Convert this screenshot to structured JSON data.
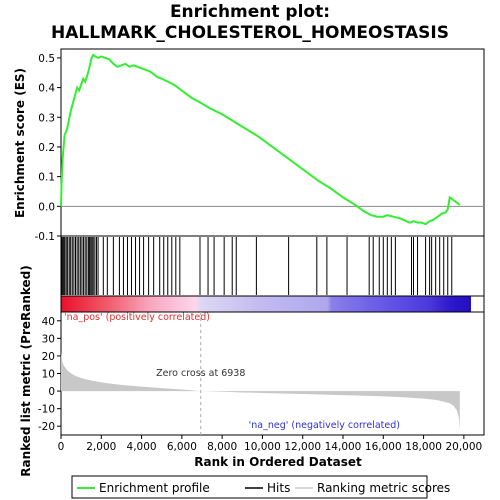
{
  "title_line1": "Enrichment plot:",
  "title_line2": "HALLMARK_CHOLESTEROL_HOMEOSTASIS",
  "colors": {
    "es_line": "#33ee33",
    "hits": "#000000",
    "metric_fill": "#c8c8c8",
    "pos_label": "#e03030",
    "neg_label": "#3030d0",
    "zero_line": "#aaaaaa"
  },
  "chart_data": [
    {
      "type": "line",
      "panel": "enrichment",
      "ylabel": "Enrichment score (ES)",
      "xlim": [
        0,
        21000
      ],
      "ylim": [
        -0.1,
        0.53
      ],
      "x_ticks": [
        0,
        2000,
        4000,
        6000,
        8000,
        10000,
        12000,
        14000,
        16000,
        18000,
        20000
      ],
      "y_ticks": [
        -0.1,
        0.0,
        0.1,
        0.2,
        0.3,
        0.4,
        0.5
      ],
      "y_tick_labels": [
        "-0.1",
        "0.0",
        "0.1",
        "0.2",
        "0.3",
        "0.4",
        "0.5"
      ],
      "series": [
        {
          "name": "Enrichment profile",
          "x": [
            0,
            30,
            80,
            130,
            180,
            240,
            300,
            360,
            420,
            480,
            560,
            640,
            720,
            800,
            900,
            1000,
            1100,
            1200,
            1300,
            1380,
            1450,
            1520,
            1600,
            1700,
            1850,
            2000,
            2200,
            2400,
            2600,
            2800,
            3000,
            3200,
            3400,
            3600,
            3800,
            4000,
            4200,
            4400,
            4600,
            4800,
            5000,
            5300,
            5600,
            5900,
            6200,
            6500,
            6900,
            7400,
            8000,
            8600,
            9200,
            9800,
            10400,
            11000,
            11600,
            12200,
            12800,
            13400,
            14000,
            14600,
            15000,
            15400,
            15700,
            16000,
            16200,
            16500,
            16800,
            17000,
            17300,
            17500,
            17700,
            17900,
            18100,
            18300,
            18500,
            18700,
            18900,
            19100,
            19200,
            19300,
            19500,
            19700,
            19800
          ],
          "y": [
            0.0,
            0.08,
            0.16,
            0.2,
            0.24,
            0.25,
            0.26,
            0.28,
            0.3,
            0.32,
            0.34,
            0.36,
            0.38,
            0.4,
            0.39,
            0.41,
            0.43,
            0.42,
            0.44,
            0.46,
            0.48,
            0.5,
            0.51,
            0.505,
            0.5,
            0.505,
            0.5,
            0.495,
            0.48,
            0.47,
            0.475,
            0.48,
            0.47,
            0.475,
            0.47,
            0.465,
            0.46,
            0.455,
            0.445,
            0.435,
            0.43,
            0.42,
            0.41,
            0.395,
            0.38,
            0.365,
            0.35,
            0.33,
            0.31,
            0.285,
            0.26,
            0.235,
            0.205,
            0.175,
            0.145,
            0.115,
            0.085,
            0.06,
            0.03,
            0.005,
            -0.015,
            -0.03,
            -0.035,
            -0.035,
            -0.03,
            -0.035,
            -0.04,
            -0.045,
            -0.055,
            -0.05,
            -0.055,
            -0.055,
            -0.06,
            -0.05,
            -0.045,
            -0.035,
            -0.025,
            -0.02,
            -0.01,
            0.03,
            0.02,
            0.01,
            0.005
          ]
        }
      ],
      "hits": [
        40,
        90,
        140,
        190,
        260,
        330,
        410,
        480,
        560,
        640,
        720,
        800,
        880,
        960,
        1040,
        1120,
        1200,
        1280,
        1360,
        1420,
        1480,
        1540,
        1600,
        1680,
        1760,
        1840,
        2100,
        2300,
        2600,
        2900,
        3100,
        3300,
        3500,
        3700,
        3900,
        4100,
        4350,
        4600,
        4900,
        5100,
        5300,
        5500,
        5700,
        5900,
        6900,
        7300,
        7600,
        8100,
        8500,
        8700,
        9700,
        11300,
        12700,
        13200,
        14200,
        15300,
        15500,
        15800,
        16000,
        16200,
        16400,
        16600,
        17400,
        17500,
        17700,
        18100,
        18300,
        18400,
        18600,
        18800,
        19000,
        19200,
        19400
      ]
    },
    {
      "type": "area",
      "panel": "ranked_list_metric",
      "ylabel": "Ranked list metric (PreRanked)",
      "xlabel": "Rank in Ordered Dataset",
      "xlim": [
        0,
        21000
      ],
      "ylim": [
        -25,
        45
      ],
      "x_ticks": [
        0,
        2000,
        4000,
        6000,
        8000,
        10000,
        12000,
        14000,
        16000,
        18000,
        20000
      ],
      "x_tick_labels": [
        "0",
        "2,000",
        "4,000",
        "6,000",
        "8,000",
        "10,000",
        "12,000",
        "14,000",
        "16,000",
        "18,000",
        "20,000"
      ],
      "y_ticks": [
        -20,
        -10,
        0,
        10,
        20,
        30,
        40
      ],
      "y_tick_labels": [
        "-20",
        "-10",
        "0",
        "10",
        "20",
        "30",
        "40"
      ],
      "series": [
        {
          "name": "Ranking metric scores",
          "x": [
            0,
            20,
            60,
            120,
            200,
            300,
            450,
            650,
            900,
            1200,
            1600,
            2000,
            2500,
            3000,
            3500,
            4000,
            5000,
            6000,
            6938,
            8000,
            9000,
            10000,
            12000,
            14000,
            16000,
            17000,
            18000,
            18600,
            19000,
            19300,
            19500,
            19650,
            19750,
            19800
          ],
          "y": [
            22,
            20,
            17,
            15,
            13.5,
            12,
            10.5,
            9,
            7.8,
            6.8,
            5.8,
            5,
            4.2,
            3.5,
            3,
            2.5,
            1.7,
            0.9,
            0,
            -0.4,
            -0.8,
            -1.1,
            -1.7,
            -2.3,
            -3,
            -3.5,
            -4.3,
            -5,
            -6,
            -7,
            -8.5,
            -11,
            -15,
            -22
          ]
        }
      ],
      "annotations": [
        {
          "text": "Zero cross at 6938",
          "x": 6938
        },
        {
          "text": "'na_pos' (positively correlated)",
          "side": "left"
        },
        {
          "text": "'na_neg' (negatively correlated)",
          "side": "right"
        }
      ]
    }
  ],
  "legend": {
    "items": [
      {
        "label": "Enrichment profile",
        "kind": "es"
      },
      {
        "label": "Hits",
        "kind": "hits"
      },
      {
        "label": "Ranking metric scores",
        "kind": "metric"
      }
    ]
  }
}
